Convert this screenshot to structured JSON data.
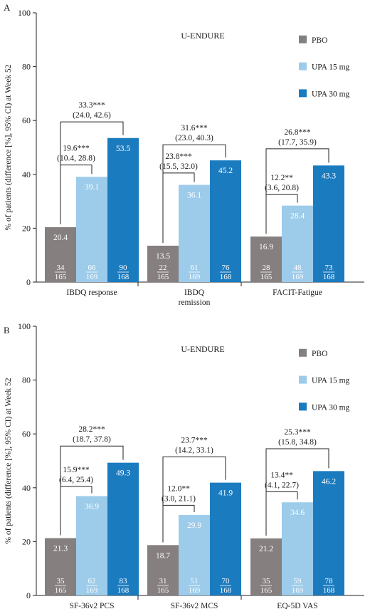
{
  "colors": {
    "PBO": "#857f80",
    "UPA 15 mg": "#9dcbea",
    "UPA 30 mg": "#1b7bbf"
  },
  "chart_data": [
    {
      "type": "bar",
      "panel_label": "A",
      "title": "U-ENDURE",
      "ylabel": "% of patients (difference [%], 95% CI) at Week 52",
      "ylim": [
        0,
        100
      ],
      "yticks": [
        0,
        20,
        40,
        60,
        80,
        100
      ],
      "legend_position": "top-right",
      "categories": [
        "IBDQ response",
        "IBDQ remission",
        "FACIT-Fatigue"
      ],
      "category_lines": [
        [
          "IBDQ response"
        ],
        [
          "IBDQ",
          "remission"
        ],
        [
          "FACIT-Fatigue"
        ]
      ],
      "series": [
        {
          "name": "PBO",
          "values": [
            20.4,
            13.5,
            16.9
          ],
          "labels": [
            "20.4",
            "13.5",
            "16.9"
          ],
          "numerators": [
            "34",
            "22",
            "28"
          ],
          "denominators": [
            "165",
            "165",
            "165"
          ]
        },
        {
          "name": "UPA 15 mg",
          "values": [
            39.1,
            36.1,
            28.4
          ],
          "labels": [
            "39.1",
            "36.1",
            "28.4"
          ],
          "numerators": [
            "66",
            "61",
            "48"
          ],
          "denominators": [
            "169",
            "169",
            "169"
          ]
        },
        {
          "name": "UPA 30 mg",
          "values": [
            53.5,
            45.2,
            43.3
          ],
          "labels": [
            "53.5",
            "45.2",
            "43.3"
          ],
          "numerators": [
            "90",
            "76",
            "73"
          ],
          "denominators": [
            "168",
            "168",
            "168"
          ]
        }
      ],
      "brackets": [
        {
          "category": 0,
          "to_series": 1,
          "bracket_y": 43.5,
          "diff": "19.6***",
          "ci": "(10.4, 28.8)"
        },
        {
          "category": 0,
          "to_series": 2,
          "bracket_y": 59.5,
          "diff": "33.3***",
          "ci": "(24.0, 42.6)"
        },
        {
          "category": 1,
          "to_series": 1,
          "bracket_y": 40.5,
          "diff": "23.8***",
          "ci": "(15.5, 32.0)"
        },
        {
          "category": 1,
          "to_series": 2,
          "bracket_y": 51.0,
          "diff": "31.6***",
          "ci": "(23.0, 40.3)"
        },
        {
          "category": 2,
          "to_series": 1,
          "bracket_y": 32.5,
          "diff": "12.2**",
          "ci": "(3.6, 20.8)"
        },
        {
          "category": 2,
          "to_series": 2,
          "bracket_y": 49.5,
          "diff": "26.8***",
          "ci": "(17.7, 35.9)"
        }
      ]
    },
    {
      "type": "bar",
      "panel_label": "B",
      "title": "U-ENDURE",
      "ylabel": "% of patients (difference [%], 95% CI) at Week 52",
      "ylim": [
        0,
        100
      ],
      "yticks": [
        0,
        20,
        40,
        60,
        80,
        100
      ],
      "legend_position": "top-right",
      "categories": [
        "SF-36v2 PCS",
        "SF-36v2 MCS",
        "EQ-5D VAS"
      ],
      "category_lines": [
        [
          "SF-36v2 PCS"
        ],
        [
          "SF-36v2 MCS"
        ],
        [
          "EQ-5D VAS"
        ]
      ],
      "series": [
        {
          "name": "PBO",
          "values": [
            21.3,
            18.7,
            21.2
          ],
          "labels": [
            "21.3",
            "18.7",
            "21.2"
          ],
          "numerators": [
            "35",
            "31",
            "35"
          ],
          "denominators": [
            "165",
            "165",
            "165"
          ]
        },
        {
          "name": "UPA 15 mg",
          "values": [
            36.9,
            29.9,
            34.6
          ],
          "labels": [
            "36.9",
            "29.9",
            "34.6"
          ],
          "numerators": [
            "62",
            "51",
            "59"
          ],
          "denominators": [
            "169",
            "169",
            "169"
          ]
        },
        {
          "name": "UPA 30 mg",
          "values": [
            49.3,
            41.9,
            46.2
          ],
          "labels": [
            "49.3",
            "41.9",
            "46.2"
          ],
          "numerators": [
            "83",
            "70",
            "78"
          ],
          "denominators": [
            "168",
            "168",
            "168"
          ]
        }
      ],
      "brackets": [
        {
          "category": 0,
          "to_series": 1,
          "bracket_y": 40.5,
          "diff": "15.9***",
          "ci": "(6.4, 25.4)"
        },
        {
          "category": 0,
          "to_series": 2,
          "bracket_y": 55.5,
          "diff": "28.2***",
          "ci": "(18.7, 37.8)"
        },
        {
          "category": 1,
          "to_series": 1,
          "bracket_y": 33.5,
          "diff": "12.0**",
          "ci": "(3.0, 21.1)"
        },
        {
          "category": 1,
          "to_series": 2,
          "bracket_y": 51.5,
          "diff": "23.7***",
          "ci": "(14.2, 33.1)"
        },
        {
          "category": 2,
          "to_series": 1,
          "bracket_y": 38.5,
          "diff": "13.4**",
          "ci": "(4.1, 22.7)"
        },
        {
          "category": 2,
          "to_series": 2,
          "bracket_y": 54.5,
          "diff": "25.3***",
          "ci": "(15.8, 34.8)"
        }
      ]
    }
  ]
}
